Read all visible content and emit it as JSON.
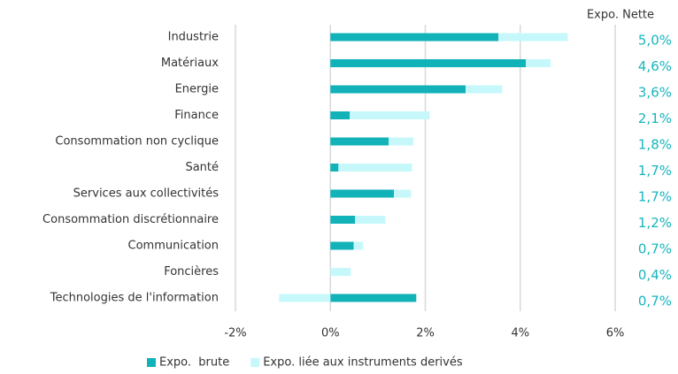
{
  "chart_data": {
    "type": "bar",
    "orientation": "horizontal",
    "stacked": true,
    "categories": [
      "Industrie",
      "Matériaux",
      "Energie",
      "Finance",
      "Consommation non cyclique",
      "Santé",
      "Services aux collectivités",
      "Consommation discrétionnaire",
      "Communication",
      "Foncières",
      "Technologies de l'information"
    ],
    "series": [
      {
        "name": "Expo.  brute",
        "color": "#12b2b9",
        "values": [
          3.54,
          4.12,
          2.85,
          0.41,
          1.23,
          0.17,
          1.34,
          0.52,
          0.49,
          0,
          1.81
        ]
      },
      {
        "name": "Expo. liée aux instruments derivés",
        "color": "#c6f8fb",
        "values": [
          1.46,
          0.52,
          0.77,
          1.68,
          0.52,
          1.55,
          0.36,
          0.64,
          0.2,
          0.43,
          -1.08
        ]
      }
    ],
    "xlim": [
      -2,
      6
    ],
    "xticks": [
      {
        "value": -2,
        "label": "-2%"
      },
      {
        "value": 0,
        "label": "0%"
      },
      {
        "value": 2,
        "label": "2%"
      },
      {
        "value": 4,
        "label": "4%"
      },
      {
        "value": 6,
        "label": "6%"
      }
    ],
    "grid": true,
    "legend": "bottom",
    "net_exposure": {
      "title": "Expo. Nette",
      "color": "#17b5bc",
      "values": [
        5.0,
        4.6,
        3.6,
        2.1,
        1.8,
        1.7,
        1.7,
        1.2,
        0.7,
        0.4,
        0.7
      ],
      "value_labels": [
        "5,0%",
        "4,6%",
        "3,6%",
        "2,1%",
        "1,8%",
        "1,7%",
        "1,7%",
        "1,2%",
        "0,7%",
        "0,4%",
        "0,7%"
      ]
    }
  }
}
